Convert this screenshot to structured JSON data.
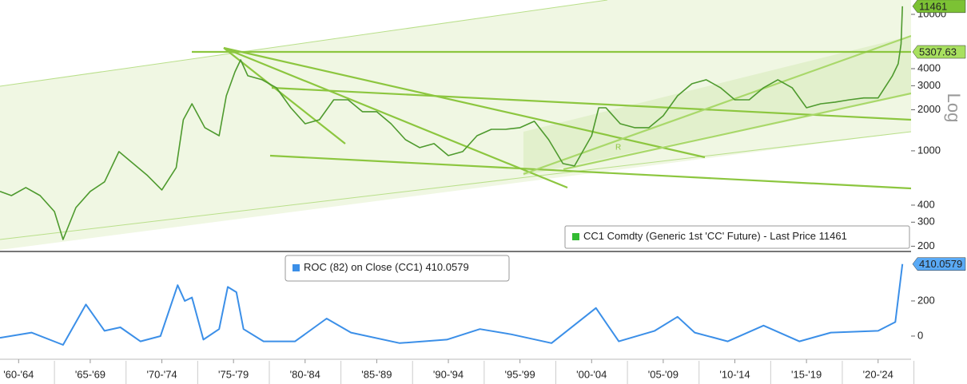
{
  "chart_data": [
    {
      "type": "line",
      "log_scale": true,
      "axis_label": "Log",
      "legend_label": "CC1 Comdty (Generic 1st 'CC' Future) - Last Price",
      "annotation": "R",
      "xlim": [
        1961.2,
        2024.8
      ],
      "ylim": [
        188,
        12740
      ],
      "yticks": [
        200,
        300,
        400,
        1000,
        2000,
        3000,
        4000,
        10000
      ],
      "reference_lines": [
        {
          "value": 5307.63,
          "color": "#a8e05f"
        }
      ],
      "x": [
        1961.2,
        1962,
        1963,
        1964,
        1965,
        1965.6,
        1966.5,
        1967.5,
        1968.5,
        1969.5,
        1970.5,
        1971.5,
        1972.5,
        1973.5,
        1974,
        1974.6,
        1975.5,
        1976.5,
        1977,
        1977.6,
        1978,
        1978.5,
        1979.5,
        1980.5,
        1981.5,
        1982.5,
        1983.5,
        1984.5,
        1985.5,
        1986.5,
        1987.5,
        1988.5,
        1989.5,
        1990.5,
        1991.5,
        1992.5,
        1993.5,
        1994.5,
        1995.5,
        1996.5,
        1997.5,
        1998.5,
        1999.5,
        2000.5,
        2001.3,
        2002.5,
        2003,
        2003.5,
        2004.5,
        2005.5,
        2006.5,
        2007.5,
        2008.5,
        2009.5,
        2010.5,
        2011.5,
        2012.5,
        2013.5,
        2014.5,
        2015.5,
        2016.5,
        2017.5,
        2018.5,
        2019.5,
        2020.5,
        2021.5,
        2022.5,
        2023.5,
        2023.9,
        2024.1,
        2024.2
      ],
      "series": [
        {
          "name": "CC1",
          "color": "#4e9a2e",
          "tag_color": "#7cc234",
          "values": [
            504,
            470,
            538,
            470,
            359,
            224,
            384,
            504,
            592,
            987,
            806,
            659,
            517,
            754,
            1690,
            2212,
            1478,
            1291,
            2532,
            3790,
            4640,
            3550,
            3315,
            2900,
            2068,
            1580,
            1690,
            2366,
            2366,
            1935,
            1935,
            1580,
            1208,
            1055,
            1129,
            923,
            987,
            1291,
            1438,
            1438,
            1478,
            1646,
            1208,
            806,
            774,
            1291,
            2068,
            2068,
            1580,
            1478,
            1478,
            1808,
            2532,
            3100,
            3315,
            2900,
            2366,
            2366,
            2900,
            3315,
            2900,
            2068,
            2212,
            2274,
            2366,
            2440,
            2440,
            3550,
            4340,
            6070,
            11461
          ]
        }
      ]
    },
    {
      "type": "line",
      "legend_label": "ROC (82)  on Close (CC1)",
      "xlim": [
        1961.2,
        2024.8
      ],
      "ylim": [
        -132,
        468
      ],
      "yticks": [
        0,
        200
      ],
      "xticks": [
        {
          "value": 1962.5,
          "label": "'60-'64"
        },
        {
          "value": 1967.5,
          "label": "'65-'69"
        },
        {
          "value": 1972.5,
          "label": "'70-'74"
        },
        {
          "value": 1977.5,
          "label": "'75-'79"
        },
        {
          "value": 1982.5,
          "label": "'80-'84"
        },
        {
          "value": 1987.5,
          "label": "'85-'89"
        },
        {
          "value": 1992.5,
          "label": "'90-'94"
        },
        {
          "value": 1997.5,
          "label": "'95-'99"
        },
        {
          "value": 2002.5,
          "label": "'00-'04"
        },
        {
          "value": 2007.5,
          "label": "'05-'09"
        },
        {
          "value": 2012.5,
          "label": "'10-'14"
        },
        {
          "value": 2017.5,
          "label": "'15-'19"
        },
        {
          "value": 2022.5,
          "label": "'20-'24"
        }
      ],
      "x": [
        1961.2,
        1963.4,
        1965.6,
        1967.2,
        1968.5,
        1969.6,
        1971.0,
        1972.4,
        1973.6,
        1974.1,
        1974.6,
        1975.4,
        1976.5,
        1977.1,
        1977.7,
        1978.2,
        1979.6,
        1981.8,
        1984.0,
        1985.7,
        1989.1,
        1992.4,
        1994.7,
        1996.9,
        1999.7,
        2002.8,
        2004.4,
        2006.9,
        2008.5,
        2009.7,
        2012.0,
        2014.5,
        2017.0,
        2019.2,
        2022.5,
        2023.7,
        2024.2
      ],
      "series": [
        {
          "name": "ROC",
          "color": "#3b8fe8",
          "tag_color": "#5aaaf5",
          "values": [
            -10,
            20,
            -50,
            180,
            30,
            50,
            -30,
            0,
            290,
            200,
            220,
            -20,
            40,
            280,
            250,
            40,
            -30,
            -30,
            100,
            20,
            -40,
            -20,
            40,
            10,
            -40,
            160,
            -30,
            30,
            110,
            20,
            -30,
            60,
            -30,
            20,
            30,
            80,
            410.0579
          ]
        }
      ]
    }
  ]
}
